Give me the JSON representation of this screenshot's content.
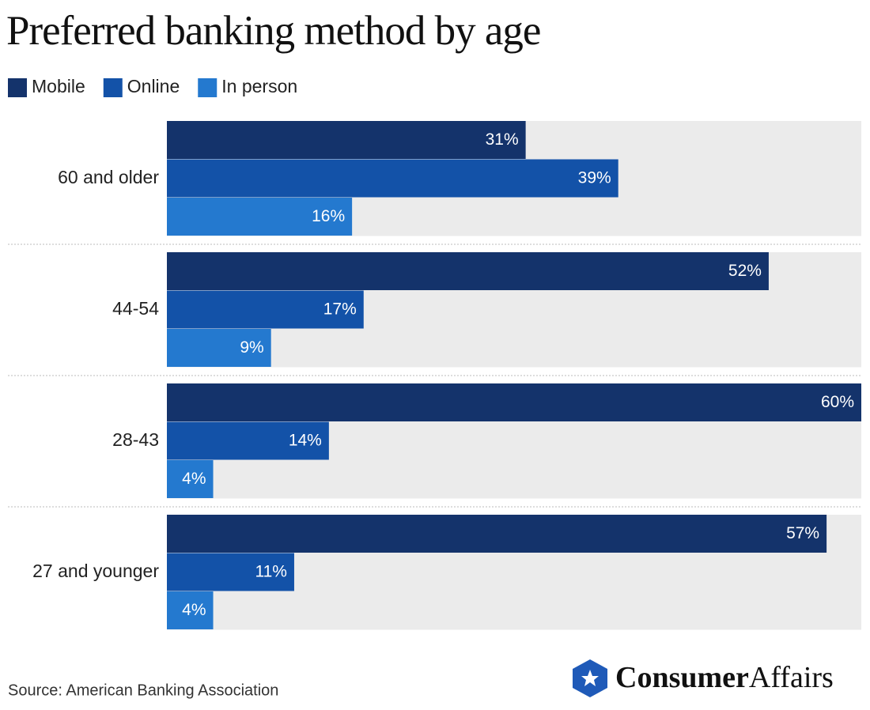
{
  "chart_data": {
    "type": "bar",
    "orientation": "horizontal",
    "title": "Preferred banking method by age",
    "categories": [
      "60 and older",
      "44-54",
      "28-43",
      "27 and younger"
    ],
    "series": [
      {
        "name": "Mobile",
        "color": "#14336b",
        "values": [
          31,
          52,
          60,
          57
        ],
        "value_labels": [
          "31%",
          "52%",
          "60%",
          "57%"
        ]
      },
      {
        "name": "Online",
        "color": "#1352a8",
        "values": [
          39,
          17,
          14,
          11
        ],
        "value_labels": [
          "39%",
          "17%",
          "14%",
          "11%"
        ]
      },
      {
        "name": "In person",
        "color": "#2479cf",
        "values": [
          16,
          9,
          4,
          4
        ],
        "value_labels": [
          "16%",
          "9%",
          "4%",
          "4%"
        ]
      }
    ],
    "xlim": [
      0,
      60
    ],
    "source": "Source: American Banking Association",
    "logo": {
      "bold": "Consumer",
      "light": "Affairs"
    }
  }
}
